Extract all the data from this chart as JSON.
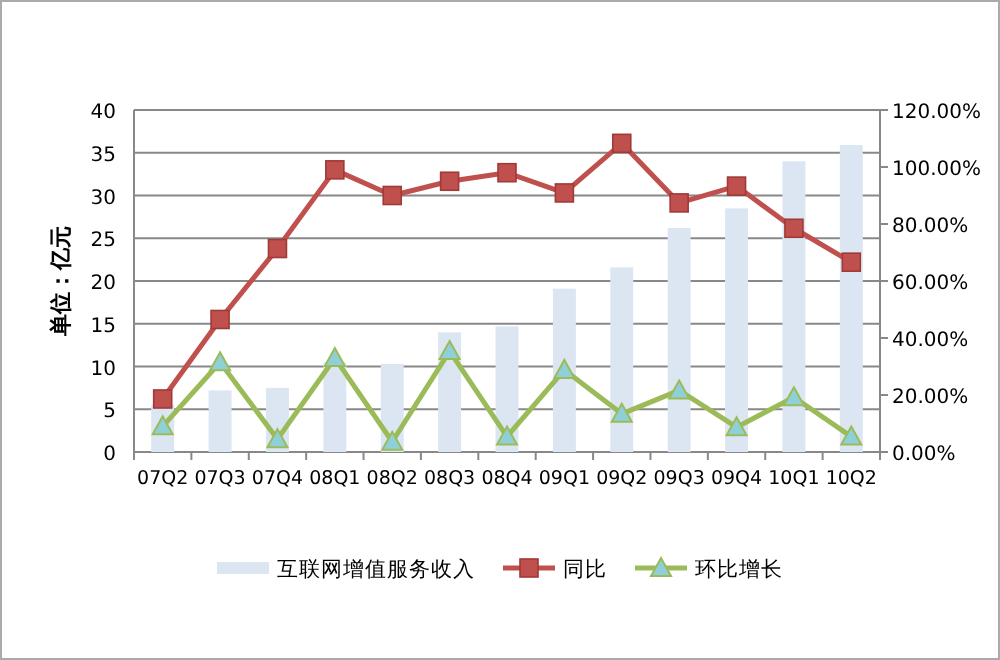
{
  "chart_data": {
    "type": "bar",
    "ylabel": "单位：亿元",
    "categories": [
      "07Q2",
      "07Q3",
      "07Q4",
      "08Q1",
      "08Q2",
      "08Q3",
      "08Q4",
      "09Q1",
      "09Q2",
      "09Q3",
      "09Q4",
      "10Q1",
      "10Q2"
    ],
    "series": [
      {
        "name": "互联网增值服务收入",
        "color": "#dce6f2",
        "values": [
          5.5,
          7.2,
          7.5,
          10.5,
          10.3,
          14,
          14.7,
          19.1,
          21.6,
          26.2,
          28.5,
          34,
          35.9
        ]
      },
      {
        "name": "同比",
        "type": "line",
        "axis": "y2",
        "color": "#c0504d",
        "marker": "square",
        "values": [
          18.6,
          46.5,
          71.4,
          99,
          90,
          95,
          98,
          90.9,
          108.3,
          87.4,
          93.3,
          78.5,
          66.6
        ]
      },
      {
        "name": "环比增长",
        "type": "line",
        "axis": "y2",
        "color": "#9bbb59",
        "marker": "triangle",
        "values": [
          9,
          31.5,
          4.5,
          33,
          3.6,
          35.4,
          5.4,
          28.8,
          13.4,
          21.6,
          8.7,
          19.2,
          5.4
        ]
      }
    ],
    "ylim": [
      0,
      40
    ],
    "yticks": [
      0,
      5,
      10,
      15,
      20,
      25,
      30,
      35,
      40
    ],
    "y2lim": [
      0,
      120
    ],
    "y2ticks": [
      {
        "value": 0,
        "label": "0.00%"
      },
      {
        "value": 20,
        "label": "20.00%"
      },
      {
        "value": 40,
        "label": "40.00%"
      },
      {
        "value": 60,
        "label": "60.00%"
      },
      {
        "value": 80,
        "label": "80.00%"
      },
      {
        "value": 100,
        "label": "100.00%"
      },
      {
        "value": 120,
        "label": "120.00%"
      }
    ],
    "grid": "y",
    "legend": "bottom"
  }
}
